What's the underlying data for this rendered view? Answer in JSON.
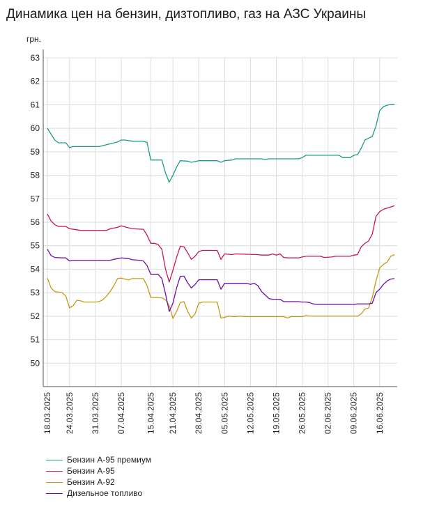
{
  "chart_data": {
    "type": "line",
    "title": "Динамика цен на бензин, дизтопливо, газ на АЗС Украины",
    "ylabel": "грн.",
    "xlabel": "",
    "ylim": [
      49,
      63
    ],
    "yticks": [
      50,
      51,
      52,
      53,
      54,
      55,
      56,
      57,
      58,
      59,
      60,
      61,
      62,
      63
    ],
    "grid": true,
    "legend_position": "bottom-left",
    "x_start": "18.03.2025",
    "x_end": "20.06.2025",
    "x_tick_labels": [
      "18.03.2025",
      "24.03.2025",
      "31.03.2025",
      "07.04.2025",
      "15.04.2025",
      "21.04.2025",
      "28.04.2025",
      "05.05.2025",
      "12.05.2025",
      "19.05.2025",
      "26.05.2025",
      "02.06.2025",
      "09.06.2025",
      "16.06.2025"
    ],
    "series": [
      {
        "name": "Бензин А-95 премиум",
        "color": "#1a9c86",
        "points": [
          [
            "18.03.2025",
            60.0
          ],
          [
            "19.03.2025",
            59.75
          ],
          [
            "20.03.2025",
            59.5
          ],
          [
            "21.03.2025",
            59.38
          ],
          [
            "23.03.2025",
            59.38
          ],
          [
            "24.03.2025",
            59.18
          ],
          [
            "25.03.2025",
            59.22
          ],
          [
            "31.03.2025",
            59.22
          ],
          [
            "01.04.2025",
            59.22
          ],
          [
            "03.04.2025",
            59.3
          ],
          [
            "06.04.2025",
            59.42
          ],
          [
            "07.04.2025",
            59.5
          ],
          [
            "08.04.2025",
            59.5
          ],
          [
            "10.04.2025",
            59.45
          ],
          [
            "13.04.2025",
            59.45
          ],
          [
            "14.04.2025",
            59.4
          ],
          [
            "15.04.2025",
            58.65
          ],
          [
            "18.04.2025",
            58.65
          ],
          [
            "19.04.2025",
            58.1
          ],
          [
            "20.04.2025",
            57.7
          ],
          [
            "21.04.2025",
            58.0
          ],
          [
            "22.04.2025",
            58.35
          ],
          [
            "23.04.2025",
            58.62
          ],
          [
            "25.04.2025",
            58.6
          ],
          [
            "26.04.2025",
            58.55
          ],
          [
            "28.04.2025",
            58.62
          ],
          [
            "03.05.2025",
            58.62
          ],
          [
            "04.05.2025",
            58.55
          ],
          [
            "05.05.2025",
            58.62
          ],
          [
            "07.05.2025",
            58.65
          ],
          [
            "08.05.2025",
            58.7
          ],
          [
            "15.05.2025",
            58.7
          ],
          [
            "16.05.2025",
            58.67
          ],
          [
            "17.05.2025",
            58.7
          ],
          [
            "25.05.2025",
            58.7
          ],
          [
            "26.05.2025",
            58.75
          ],
          [
            "27.05.2025",
            58.85
          ],
          [
            "05.06.2025",
            58.85
          ],
          [
            "06.06.2025",
            58.75
          ],
          [
            "08.06.2025",
            58.75
          ],
          [
            "09.06.2025",
            58.85
          ],
          [
            "10.06.2025",
            58.88
          ],
          [
            "11.06.2025",
            59.15
          ],
          [
            "12.06.2025",
            59.5
          ],
          [
            "13.06.2025",
            59.58
          ],
          [
            "14.06.2025",
            59.65
          ],
          [
            "15.06.2025",
            60.1
          ],
          [
            "16.06.2025",
            60.75
          ],
          [
            "17.06.2025",
            60.92
          ],
          [
            "18.06.2025",
            60.98
          ],
          [
            "19.06.2025",
            61.02
          ],
          [
            "20.06.2025",
            61.02
          ]
        ]
      },
      {
        "name": "Бензин А-95",
        "color": "#c8145f",
        "points": [
          [
            "18.03.2025",
            56.35
          ],
          [
            "19.03.2025",
            56.05
          ],
          [
            "20.03.2025",
            55.9
          ],
          [
            "21.03.2025",
            55.82
          ],
          [
            "23.03.2025",
            55.82
          ],
          [
            "24.03.2025",
            55.72
          ],
          [
            "26.03.2025",
            55.68
          ],
          [
            "27.03.2025",
            55.65
          ],
          [
            "03.04.2025",
            55.65
          ],
          [
            "04.04.2025",
            55.72
          ],
          [
            "06.04.2025",
            55.78
          ],
          [
            "07.04.2025",
            55.85
          ],
          [
            "08.04.2025",
            55.8
          ],
          [
            "10.04.2025",
            55.72
          ],
          [
            "13.04.2025",
            55.7
          ],
          [
            "14.04.2025",
            55.45
          ],
          [
            "15.04.2025",
            55.1
          ],
          [
            "16.04.2025",
            55.1
          ],
          [
            "17.04.2025",
            55.05
          ],
          [
            "18.04.2025",
            54.85
          ],
          [
            "19.04.2025",
            54.0
          ],
          [
            "20.04.2025",
            53.45
          ],
          [
            "21.04.2025",
            53.95
          ],
          [
            "22.04.2025",
            54.5
          ],
          [
            "23.04.2025",
            54.98
          ],
          [
            "24.04.2025",
            54.95
          ],
          [
            "25.04.2025",
            54.7
          ],
          [
            "26.04.2025",
            54.42
          ],
          [
            "27.04.2025",
            54.55
          ],
          [
            "28.04.2025",
            54.75
          ],
          [
            "29.04.2025",
            54.8
          ],
          [
            "03.05.2025",
            54.8
          ],
          [
            "04.05.2025",
            54.42
          ],
          [
            "05.05.2025",
            54.65
          ],
          [
            "07.05.2025",
            54.62
          ],
          [
            "08.05.2025",
            54.65
          ],
          [
            "14.05.2025",
            54.62
          ],
          [
            "15.05.2025",
            54.6
          ],
          [
            "17.05.2025",
            54.6
          ],
          [
            "18.05.2025",
            54.65
          ],
          [
            "19.05.2025",
            54.6
          ],
          [
            "20.05.2025",
            54.65
          ],
          [
            "21.05.2025",
            54.5
          ],
          [
            "22.05.2025",
            54.48
          ],
          [
            "25.05.2025",
            54.48
          ],
          [
            "26.05.2025",
            54.52
          ],
          [
            "27.05.2025",
            54.55
          ],
          [
            "31.05.2025",
            54.55
          ],
          [
            "01.06.2025",
            54.5
          ],
          [
            "03.06.2025",
            54.52
          ],
          [
            "04.06.2025",
            54.55
          ],
          [
            "08.06.2025",
            54.55
          ],
          [
            "09.06.2025",
            54.6
          ],
          [
            "10.06.2025",
            54.62
          ],
          [
            "11.06.2025",
            54.95
          ],
          [
            "12.06.2025",
            55.1
          ],
          [
            "13.06.2025",
            55.2
          ],
          [
            "14.06.2025",
            55.5
          ],
          [
            "15.06.2025",
            56.25
          ],
          [
            "16.06.2025",
            56.45
          ],
          [
            "17.06.2025",
            56.55
          ],
          [
            "18.06.2025",
            56.6
          ],
          [
            "19.06.2025",
            56.65
          ],
          [
            "20.06.2025",
            56.7
          ]
        ]
      },
      {
        "name": "Бензин А-92",
        "color": "#c49a14",
        "points": [
          [
            "18.03.2025",
            53.62
          ],
          [
            "19.03.2025",
            53.2
          ],
          [
            "20.03.2025",
            53.05
          ],
          [
            "22.03.2025",
            53.0
          ],
          [
            "23.03.2025",
            52.85
          ],
          [
            "24.03.2025",
            52.35
          ],
          [
            "25.03.2025",
            52.45
          ],
          [
            "26.03.2025",
            52.68
          ],
          [
            "27.03.2025",
            52.65
          ],
          [
            "28.03.2025",
            52.6
          ],
          [
            "31.03.2025",
            52.6
          ],
          [
            "01.04.2025",
            52.62
          ],
          [
            "02.04.2025",
            52.7
          ],
          [
            "03.04.2025",
            52.85
          ],
          [
            "04.04.2025",
            53.05
          ],
          [
            "05.04.2025",
            53.3
          ],
          [
            "06.04.2025",
            53.6
          ],
          [
            "07.04.2025",
            53.62
          ],
          [
            "08.04.2025",
            53.58
          ],
          [
            "09.04.2025",
            53.55
          ],
          [
            "10.04.2025",
            53.6
          ],
          [
            "13.04.2025",
            53.6
          ],
          [
            "14.04.2025",
            53.3
          ],
          [
            "15.04.2025",
            52.8
          ],
          [
            "18.04.2025",
            52.78
          ],
          [
            "19.04.2025",
            52.7
          ],
          [
            "20.04.2025",
            52.45
          ],
          [
            "21.04.2025",
            51.9
          ],
          [
            "22.04.2025",
            52.2
          ],
          [
            "23.04.2025",
            52.58
          ],
          [
            "24.04.2025",
            52.62
          ],
          [
            "25.04.2025",
            52.2
          ],
          [
            "26.04.2025",
            51.92
          ],
          [
            "27.04.2025",
            52.1
          ],
          [
            "28.04.2025",
            52.55
          ],
          [
            "29.04.2025",
            52.6
          ],
          [
            "03.05.2025",
            52.6
          ],
          [
            "04.05.2025",
            51.92
          ],
          [
            "05.05.2025",
            51.95
          ],
          [
            "06.05.2025",
            52.0
          ],
          [
            "08.05.2025",
            51.98
          ],
          [
            "09.05.2025",
            52.0
          ],
          [
            "11.05.2025",
            51.98
          ],
          [
            "12.05.2025",
            51.98
          ],
          [
            "21.05.2025",
            51.98
          ],
          [
            "22.05.2025",
            51.92
          ],
          [
            "23.05.2025",
            51.98
          ],
          [
            "26.05.2025",
            51.98
          ],
          [
            "27.05.2025",
            52.02
          ],
          [
            "28.05.2025",
            52.0
          ],
          [
            "10.06.2025",
            52.0
          ],
          [
            "11.06.2025",
            52.1
          ],
          [
            "12.06.2025",
            52.3
          ],
          [
            "13.06.2025",
            52.35
          ],
          [
            "14.06.2025",
            52.8
          ],
          [
            "15.06.2025",
            53.5
          ],
          [
            "16.06.2025",
            54.05
          ],
          [
            "17.06.2025",
            54.2
          ],
          [
            "18.06.2025",
            54.3
          ],
          [
            "19.06.2025",
            54.55
          ],
          [
            "20.06.2025",
            54.62
          ]
        ]
      },
      {
        "name": "Дизельное топливо",
        "color": "#6a0fa8",
        "points": [
          [
            "18.03.2025",
            54.85
          ],
          [
            "19.03.2025",
            54.58
          ],
          [
            "20.03.2025",
            54.5
          ],
          [
            "22.03.2025",
            54.48
          ],
          [
            "23.03.2025",
            54.48
          ],
          [
            "24.03.2025",
            54.35
          ],
          [
            "25.03.2025",
            54.38
          ],
          [
            "03.04.2025",
            54.38
          ],
          [
            "04.04.2025",
            54.38
          ],
          [
            "05.04.2025",
            54.42
          ],
          [
            "06.04.2025",
            54.45
          ],
          [
            "07.04.2025",
            54.48
          ],
          [
            "09.04.2025",
            54.45
          ],
          [
            "10.04.2025",
            54.4
          ],
          [
            "12.04.2025",
            54.38
          ],
          [
            "13.04.2025",
            54.35
          ],
          [
            "14.04.2025",
            54.15
          ],
          [
            "15.04.2025",
            53.78
          ],
          [
            "17.04.2025",
            53.78
          ],
          [
            "18.04.2025",
            53.6
          ],
          [
            "19.04.2025",
            52.95
          ],
          [
            "20.04.2025",
            52.2
          ],
          [
            "21.04.2025",
            52.55
          ],
          [
            "22.04.2025",
            53.2
          ],
          [
            "23.04.2025",
            53.7
          ],
          [
            "24.04.2025",
            53.7
          ],
          [
            "25.04.2025",
            53.42
          ],
          [
            "26.04.2025",
            53.2
          ],
          [
            "27.04.2025",
            53.35
          ],
          [
            "28.04.2025",
            53.55
          ],
          [
            "29.04.2025",
            53.55
          ],
          [
            "03.05.2025",
            53.55
          ],
          [
            "04.05.2025",
            53.15
          ],
          [
            "05.05.2025",
            53.4
          ],
          [
            "11.05.2025",
            53.4
          ],
          [
            "12.05.2025",
            53.35
          ],
          [
            "13.05.2025",
            53.4
          ],
          [
            "14.05.2025",
            53.3
          ],
          [
            "15.05.2025",
            53.05
          ],
          [
            "16.05.2025",
            52.9
          ],
          [
            "17.05.2025",
            52.75
          ],
          [
            "18.05.2025",
            52.72
          ],
          [
            "20.05.2025",
            52.72
          ],
          [
            "21.05.2025",
            52.62
          ],
          [
            "25.05.2025",
            52.62
          ],
          [
            "26.05.2025",
            52.6
          ],
          [
            "27.05.2025",
            52.6
          ],
          [
            "28.05.2025",
            52.58
          ],
          [
            "29.05.2025",
            52.52
          ],
          [
            "30.05.2025",
            52.5
          ],
          [
            "31.05.2025",
            52.5
          ],
          [
            "09.06.2025",
            52.5
          ],
          [
            "10.06.2025",
            52.52
          ],
          [
            "13.06.2025",
            52.52
          ],
          [
            "14.06.2025",
            52.55
          ],
          [
            "15.06.2025",
            53.0
          ],
          [
            "16.06.2025",
            53.15
          ],
          [
            "17.06.2025",
            53.35
          ],
          [
            "18.06.2025",
            53.5
          ],
          [
            "19.06.2025",
            53.58
          ],
          [
            "20.06.2025",
            53.6
          ]
        ]
      }
    ]
  }
}
